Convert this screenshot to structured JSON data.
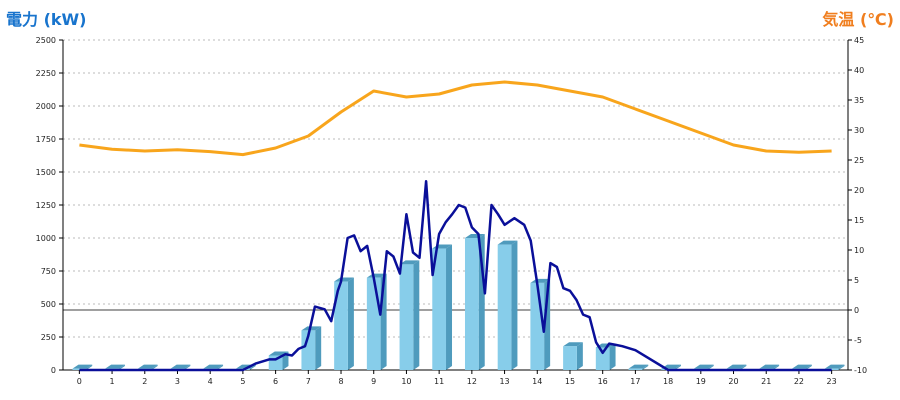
{
  "titles": {
    "left": "電力 (kW)",
    "right": "気温 (℃)"
  },
  "colors": {
    "power_axis": "#1874cd",
    "temp_axis": "#f07e1e",
    "bar_front": "#87cdea",
    "bar_side": "#4f9bbd",
    "power_line": "#0a0f99",
    "temp_line": "#f8a51c",
    "grid": "#bbbbbb"
  },
  "chart_data": {
    "type": "bar",
    "categories": [
      "0",
      "1",
      "2",
      "3",
      "4",
      "5",
      "6",
      "7",
      "8",
      "9",
      "10",
      "11",
      "12",
      "13",
      "14",
      "15",
      "16",
      "17",
      "18",
      "19",
      "20",
      "21",
      "22",
      "23"
    ],
    "series": [
      {
        "kind": "bar",
        "axis": "left",
        "values": [
          10,
          10,
          10,
          10,
          10,
          10,
          110,
          300,
          670,
          700,
          800,
          920,
          1000,
          950,
          660,
          180,
          170,
          10,
          10,
          10,
          10,
          10,
          10,
          10
        ]
      },
      {
        "kind": "line",
        "axis": "left",
        "x": [
          0,
          5,
          5.4,
          5.8,
          6,
          6.3,
          6.5,
          6.7,
          6.9,
          7,
          7.2,
          7.5,
          7.7,
          7.9,
          8,
          8.2,
          8.4,
          8.6,
          8.8,
          9,
          9.2,
          9.4,
          9.6,
          9.8,
          10,
          10.2,
          10.4,
          10.6,
          10.8,
          11,
          11.2,
          11.4,
          11.6,
          11.8,
          12,
          12.2,
          12.4,
          12.6,
          12.8,
          13,
          13.3,
          13.6,
          13.8,
          14,
          14.2,
          14.4,
          14.6,
          14.8,
          15,
          15.2,
          15.4,
          15.6,
          15.8,
          16,
          16.2,
          16.4,
          16.6,
          17,
          18,
          23
        ],
        "values": [
          0,
          0,
          50,
          80,
          80,
          120,
          110,
          160,
          180,
          260,
          480,
          460,
          370,
          600,
          670,
          1000,
          1020,
          900,
          940,
          700,
          420,
          900,
          860,
          730,
          1180,
          890,
          850,
          1430,
          720,
          1030,
          1120,
          1180,
          1250,
          1230,
          1080,
          1030,
          580,
          1250,
          1180,
          1100,
          1150,
          1100,
          980,
          650,
          290,
          810,
          780,
          620,
          600,
          530,
          420,
          400,
          210,
          130,
          200,
          190,
          180,
          150,
          0,
          0
        ]
      },
      {
        "kind": "line",
        "axis": "right",
        "x": [
          0,
          1,
          2,
          3,
          4,
          5,
          6,
          7,
          8,
          9,
          10,
          11,
          12,
          13,
          14,
          15,
          16,
          17,
          18,
          19,
          20,
          21,
          22,
          23
        ],
        "values": [
          27.5,
          26.8,
          26.5,
          26.7,
          26.4,
          25.9,
          27,
          29,
          33,
          36.5,
          35.5,
          36,
          37.5,
          38,
          37.5,
          36.5,
          35.5,
          33.5,
          31.5,
          29.5,
          27.5,
          26.5,
          26.3,
          26.5
        ]
      }
    ],
    "yAxisLeft": {
      "ylim": [
        0,
        2500
      ],
      "ticks": [
        "0",
        "250",
        "500",
        "750",
        "1000",
        "1250",
        "1500",
        "1750",
        "2000",
        "2250",
        "2500"
      ]
    },
    "yAxisRight": {
      "ylim": [
        -10,
        45
      ],
      "ticks": [
        "-10",
        "-5",
        "0",
        "5",
        "10",
        "15",
        "20",
        "25",
        "30",
        "35",
        "40",
        "45"
      ]
    },
    "grid": true
  }
}
